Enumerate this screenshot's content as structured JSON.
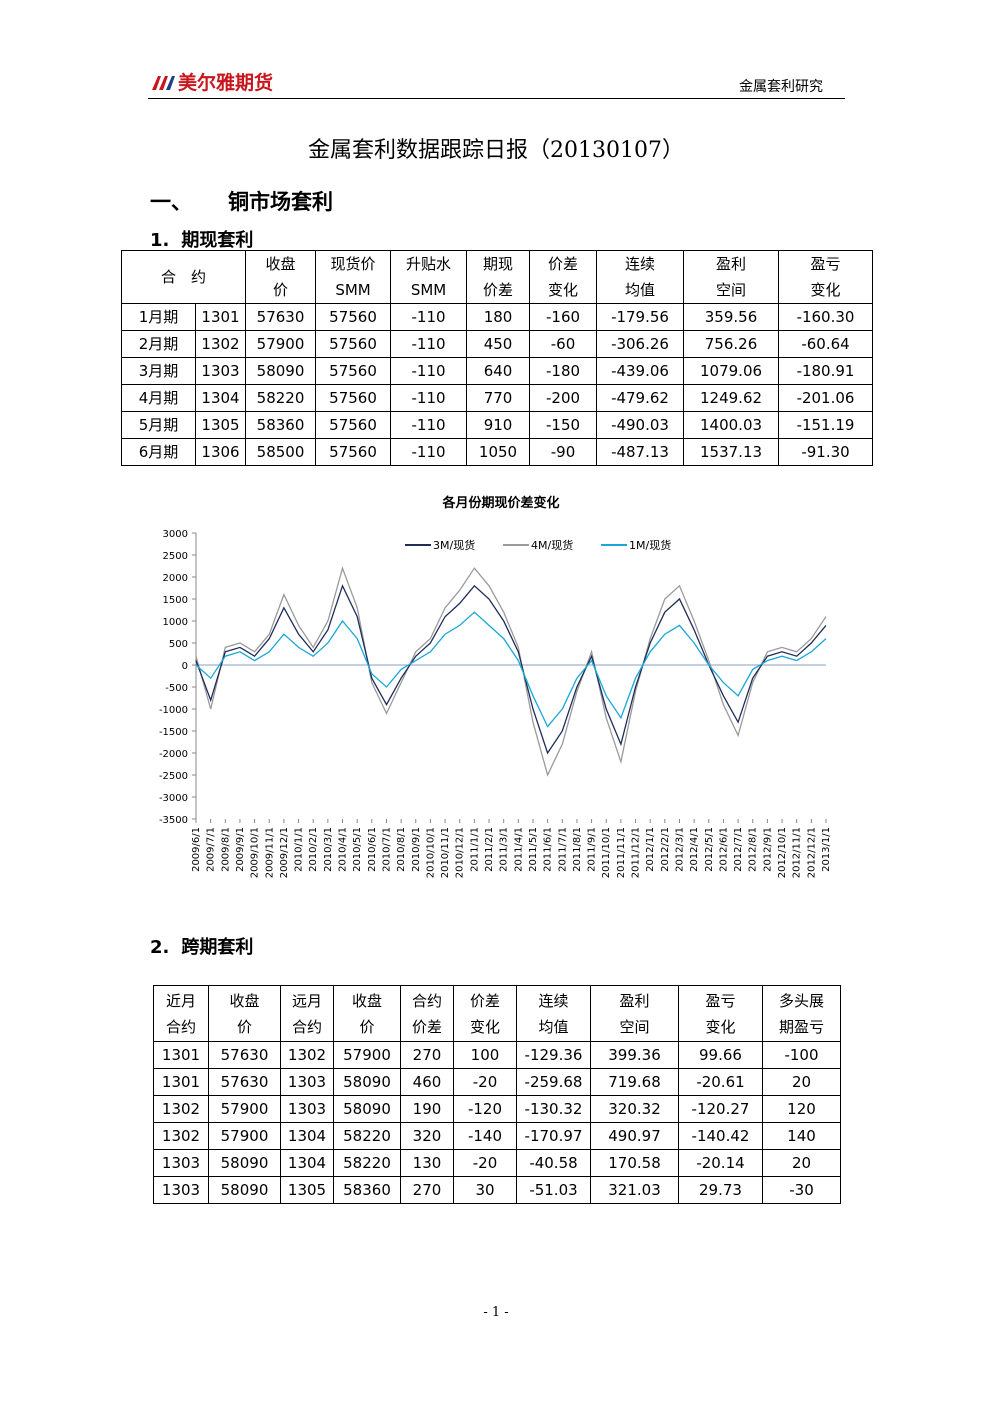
{
  "header": {
    "logo": "美尔雅期货",
    "section": "金属套利研究"
  },
  "title": "金属套利数据跟踪日报（20130107）",
  "heading_1": {
    "number": "一、",
    "text": "铜市场套利"
  },
  "subheading_1": {
    "number": "1.",
    "text": "期现套利"
  },
  "table_1": {
    "header": [
      [
        "合　约"
      ],
      [
        "收盘",
        "价"
      ],
      [
        "现货价",
        "SMM"
      ],
      [
        "升贴水",
        "SMM"
      ],
      [
        "期现",
        "价差"
      ],
      [
        "价差",
        "变化"
      ],
      [
        "连续",
        "均值"
      ],
      [
        "盈利",
        "空间"
      ],
      [
        "盈亏",
        "变化"
      ]
    ],
    "rows": [
      [
        "1月期",
        "1301",
        "57630",
        "57560",
        "-110",
        "180",
        "-160",
        "-179.56",
        "359.56",
        "-160.30"
      ],
      [
        "2月期",
        "1302",
        "57900",
        "57560",
        "-110",
        "450",
        "-60",
        "-306.26",
        "756.26",
        "-60.64"
      ],
      [
        "3月期",
        "1303",
        "58090",
        "57560",
        "-110",
        "640",
        "-180",
        "-439.06",
        "1079.06",
        "-180.91"
      ],
      [
        "4月期",
        "1304",
        "58220",
        "57560",
        "-110",
        "770",
        "-200",
        "-479.62",
        "1249.62",
        "-201.06"
      ],
      [
        "5月期",
        "1305",
        "58360",
        "57560",
        "-110",
        "910",
        "-150",
        "-490.03",
        "1400.03",
        "-151.19"
      ],
      [
        "6月期",
        "1306",
        "58500",
        "57560",
        "-110",
        "1050",
        "-90",
        "-487.13",
        "1537.13",
        "-91.30"
      ]
    ]
  },
  "chart_data": {
    "type": "line",
    "title": "各月份期现价差变化",
    "x": [
      "2009/6/1",
      "2009/7/1",
      "2009/8/1",
      "2009/9/1",
      "2009/10/1",
      "2009/11/1",
      "2009/12/1",
      "2010/1/1",
      "2010/2/1",
      "2010/3/1",
      "2010/4/1",
      "2010/5/1",
      "2010/6/1",
      "2010/7/1",
      "2010/8/1",
      "2010/9/1",
      "2010/10/1",
      "2010/11/1",
      "2010/12/1",
      "2011/1/1",
      "2011/2/1",
      "2011/3/1",
      "2011/4/1",
      "2011/5/1",
      "2011/6/1",
      "2011/7/1",
      "2011/8/1",
      "2011/9/1",
      "2011/10/1",
      "2011/11/1",
      "2011/12/1",
      "2012/1/1",
      "2012/2/1",
      "2012/3/1",
      "2012/4/1",
      "2012/5/1",
      "2012/6/1",
      "2012/7/1",
      "2012/8/1",
      "2012/9/1",
      "2012/10/1",
      "2012/11/1",
      "2012/12/1",
      "2013/1/1"
    ],
    "series": [
      {
        "name": "4M/现货",
        "color": "#9a9a9a",
        "values": [
          200,
          -1000,
          400,
          500,
          300,
          700,
          1600,
          900,
          400,
          1000,
          2200,
          1300,
          -400,
          -1100,
          -400,
          300,
          600,
          1300,
          1700,
          2200,
          1800,
          1200,
          400,
          -1300,
          -2500,
          -1800,
          -600,
          300,
          -1200,
          -2200,
          -600,
          600,
          1500,
          1800,
          1000,
          100,
          -900,
          -1600,
          -400,
          300,
          400,
          300,
          600,
          1100
        ]
      },
      {
        "name": "3M/现货",
        "color": "#1f2d5a",
        "values": [
          100,
          -800,
          300,
          400,
          200,
          600,
          1300,
          700,
          300,
          800,
          1800,
          1100,
          -300,
          -900,
          -300,
          200,
          500,
          1100,
          1400,
          1800,
          1500,
          1000,
          300,
          -1000,
          -2000,
          -1500,
          -500,
          200,
          -1000,
          -1800,
          -500,
          500,
          1200,
          1500,
          800,
          0,
          -700,
          -1300,
          -300,
          200,
          300,
          200,
          500,
          900
        ]
      },
      {
        "name": "1M/现货",
        "color": "#1aa7d8",
        "values": [
          0,
          -300,
          200,
          300,
          100,
          300,
          700,
          400,
          200,
          500,
          1000,
          600,
          -200,
          -500,
          -100,
          100,
          300,
          700,
          900,
          1200,
          900,
          600,
          100,
          -700,
          -1400,
          -1000,
          -300,
          100,
          -700,
          -1200,
          -300,
          300,
          700,
          900,
          500,
          0,
          -400,
          -700,
          -100,
          100,
          200,
          100,
          300,
          600
        ]
      }
    ],
    "ylim": [
      -3500,
      3000
    ],
    "yticks": [
      -3500,
      -3000,
      -2500,
      -2000,
      -1500,
      -1000,
      -500,
      0,
      500,
      1000,
      1500,
      2000,
      2500,
      3000
    ]
  },
  "subheading_2": {
    "number": "2.",
    "text": "跨期套利"
  },
  "table_2": {
    "header": [
      [
        "近月",
        "合约"
      ],
      [
        "收盘",
        "价"
      ],
      [
        "远月",
        "合约"
      ],
      [
        "收盘",
        "价"
      ],
      [
        "合约",
        "价差"
      ],
      [
        "价差",
        "变化"
      ],
      [
        "连续",
        "均值"
      ],
      [
        "盈利",
        "空间"
      ],
      [
        "盈亏",
        "变化"
      ],
      [
        "多头展",
        "期盈亏"
      ]
    ],
    "rows": [
      [
        "1301",
        "57630",
        "1302",
        "57900",
        "270",
        "100",
        "-129.36",
        "399.36",
        "99.66",
        "-100"
      ],
      [
        "1301",
        "57630",
        "1303",
        "58090",
        "460",
        "-20",
        "-259.68",
        "719.68",
        "-20.61",
        "20"
      ],
      [
        "1302",
        "57900",
        "1303",
        "58090",
        "190",
        "-120",
        "-130.32",
        "320.32",
        "-120.27",
        "120"
      ],
      [
        "1302",
        "57900",
        "1304",
        "58220",
        "320",
        "-140",
        "-170.97",
        "490.97",
        "-140.42",
        "140"
      ],
      [
        "1303",
        "58090",
        "1304",
        "58220",
        "130",
        "-20",
        "-40.58",
        "170.58",
        "-20.14",
        "20"
      ],
      [
        "1303",
        "58090",
        "1305",
        "58360",
        "270",
        "30",
        "-51.03",
        "321.03",
        "29.73",
        "-30"
      ]
    ]
  },
  "footer": "- 1 -"
}
